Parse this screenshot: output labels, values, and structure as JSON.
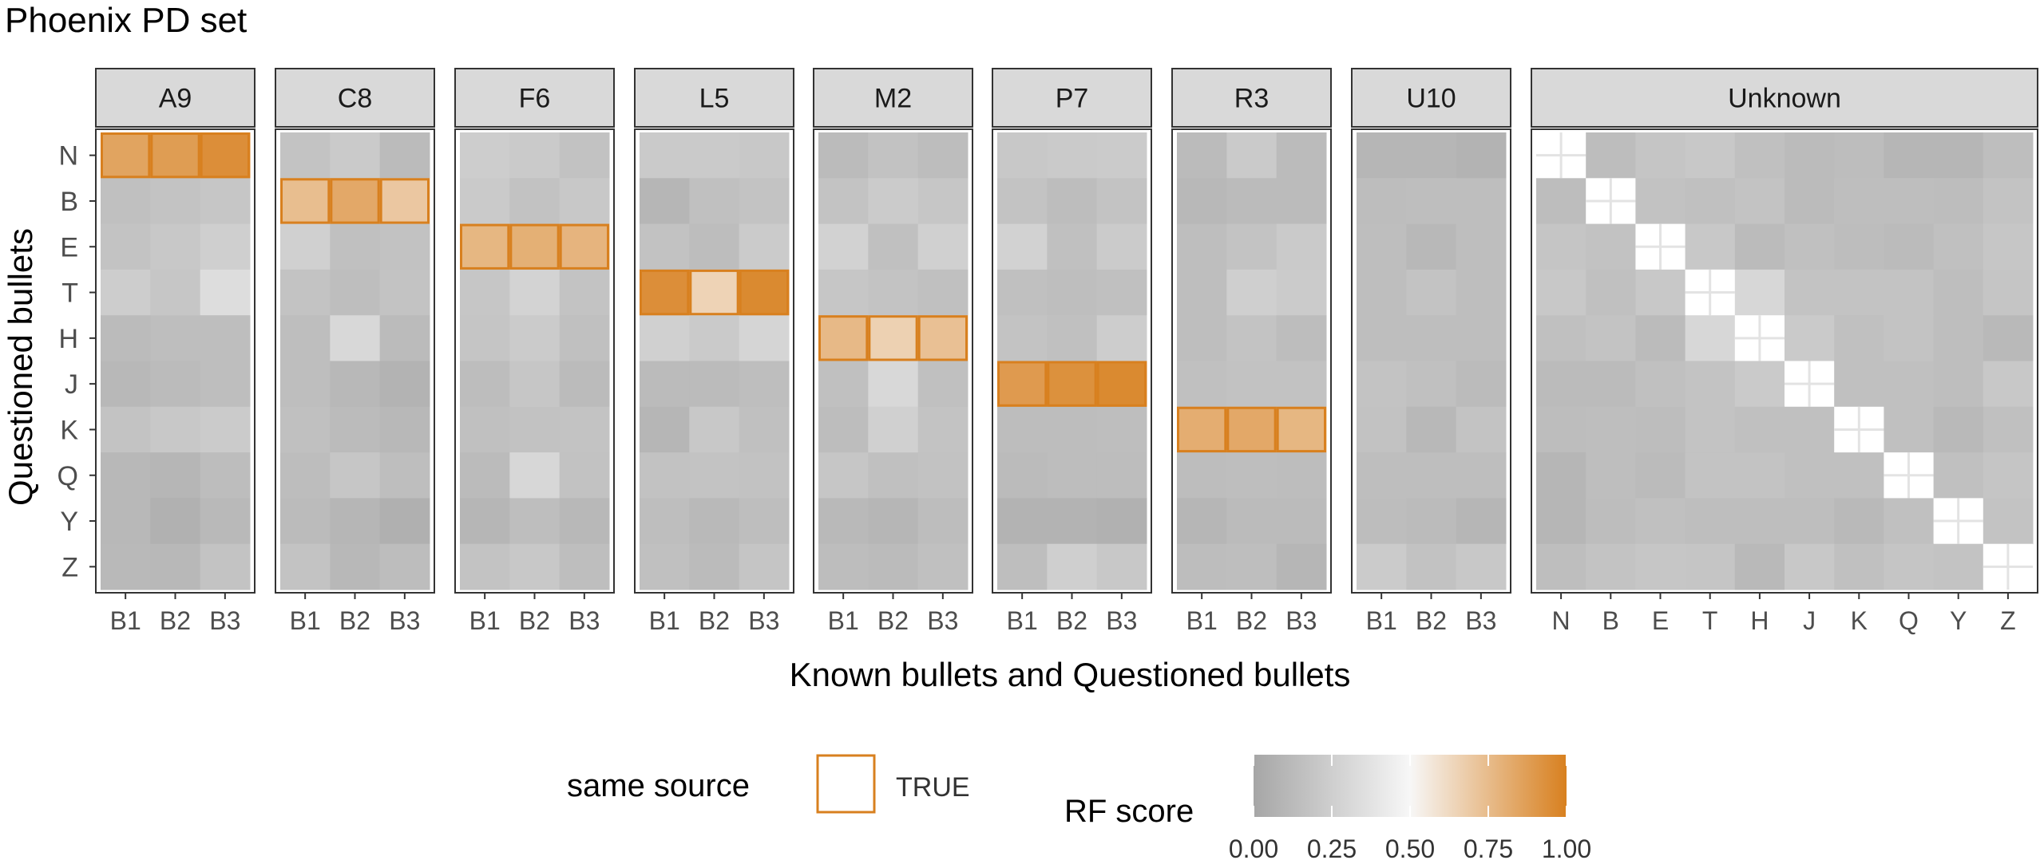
{
  "chart_data": {
    "type": "heatmap",
    "title": "Phoenix PD set",
    "xlabel": "Known bullets and Questioned bullets",
    "ylabel": "Questioned bullets",
    "rows": [
      "N",
      "B",
      "E",
      "T",
      "H",
      "J",
      "K",
      "Q",
      "Y",
      "Z"
    ],
    "known_columns": [
      "B1",
      "B2",
      "B3"
    ],
    "panels": [
      {
        "name": "A9",
        "columns": [
          "B1",
          "B2",
          "B3"
        ],
        "values": [
          [
            0.85,
            0.88,
            0.94
          ],
          [
            0.16,
            0.18,
            0.2
          ],
          [
            0.18,
            0.21,
            0.25
          ],
          [
            0.24,
            0.2,
            0.34
          ],
          [
            0.13,
            0.15,
            0.15
          ],
          [
            0.11,
            0.13,
            0.15
          ],
          [
            0.18,
            0.21,
            0.23
          ],
          [
            0.11,
            0.1,
            0.14
          ],
          [
            0.11,
            0.07,
            0.12
          ],
          [
            0.12,
            0.11,
            0.18
          ]
        ]
      },
      {
        "name": "C8",
        "columns": [
          "B1",
          "B2",
          "B3"
        ],
        "values": [
          [
            0.18,
            0.22,
            0.13
          ],
          [
            0.74,
            0.83,
            0.7
          ],
          [
            0.26,
            0.16,
            0.17
          ],
          [
            0.18,
            0.15,
            0.18
          ],
          [
            0.15,
            0.31,
            0.13
          ],
          [
            0.15,
            0.11,
            0.08
          ],
          [
            0.16,
            0.13,
            0.11
          ],
          [
            0.14,
            0.2,
            0.15
          ],
          [
            0.13,
            0.1,
            0.06
          ],
          [
            0.18,
            0.11,
            0.14
          ]
        ]
      },
      {
        "name": "F6",
        "columns": [
          "B1",
          "B2",
          "B3"
        ],
        "values": [
          [
            0.24,
            0.22,
            0.17
          ],
          [
            0.22,
            0.17,
            0.21
          ],
          [
            0.77,
            0.8,
            0.78
          ],
          [
            0.2,
            0.28,
            0.18
          ],
          [
            0.19,
            0.23,
            0.16
          ],
          [
            0.14,
            0.2,
            0.13
          ],
          [
            0.16,
            0.17,
            0.18
          ],
          [
            0.13,
            0.3,
            0.17
          ],
          [
            0.1,
            0.15,
            0.11
          ],
          [
            0.18,
            0.21,
            0.15
          ]
        ]
      },
      {
        "name": "L5",
        "columns": [
          "B1",
          "B2",
          "B3"
        ],
        "values": [
          [
            0.22,
            0.22,
            0.21
          ],
          [
            0.1,
            0.16,
            0.18
          ],
          [
            0.17,
            0.14,
            0.23
          ],
          [
            0.94,
            0.65,
            0.96
          ],
          [
            0.26,
            0.22,
            0.29
          ],
          [
            0.13,
            0.13,
            0.15
          ],
          [
            0.1,
            0.21,
            0.16
          ],
          [
            0.17,
            0.18,
            0.17
          ],
          [
            0.15,
            0.12,
            0.15
          ],
          [
            0.16,
            0.13,
            0.19
          ]
        ]
      },
      {
        "name": "M2",
        "columns": [
          "B1",
          "B2",
          "B3"
        ],
        "values": [
          [
            0.13,
            0.17,
            0.14
          ],
          [
            0.18,
            0.23,
            0.2
          ],
          [
            0.27,
            0.16,
            0.26
          ],
          [
            0.2,
            0.18,
            0.16
          ],
          [
            0.76,
            0.66,
            0.73
          ],
          [
            0.16,
            0.31,
            0.16
          ],
          [
            0.14,
            0.26,
            0.18
          ],
          [
            0.2,
            0.16,
            0.17
          ],
          [
            0.12,
            0.1,
            0.14
          ],
          [
            0.14,
            0.13,
            0.16
          ]
        ]
      },
      {
        "name": "P7",
        "columns": [
          "B1",
          "B2",
          "B3"
        ],
        "values": [
          [
            0.21,
            0.22,
            0.23
          ],
          [
            0.18,
            0.14,
            0.18
          ],
          [
            0.27,
            0.16,
            0.23
          ],
          [
            0.16,
            0.15,
            0.16
          ],
          [
            0.18,
            0.16,
            0.24
          ],
          [
            0.89,
            0.93,
            0.96
          ],
          [
            0.14,
            0.14,
            0.15
          ],
          [
            0.13,
            0.14,
            0.14
          ],
          [
            0.08,
            0.08,
            0.07
          ],
          [
            0.15,
            0.25,
            0.21
          ]
        ]
      },
      {
        "name": "R3",
        "columns": [
          "B1",
          "B2",
          "B3"
        ],
        "values": [
          [
            0.13,
            0.22,
            0.13
          ],
          [
            0.11,
            0.13,
            0.13
          ],
          [
            0.15,
            0.18,
            0.22
          ],
          [
            0.15,
            0.25,
            0.23
          ],
          [
            0.15,
            0.18,
            0.14
          ],
          [
            0.16,
            0.17,
            0.17
          ],
          [
            0.81,
            0.83,
            0.77
          ],
          [
            0.14,
            0.15,
            0.14
          ],
          [
            0.1,
            0.13,
            0.13
          ],
          [
            0.14,
            0.15,
            0.1
          ]
        ]
      },
      {
        "name": "U10",
        "columns": [
          "B1",
          "B2",
          "B3"
        ],
        "values": [
          [
            0.1,
            0.1,
            0.08
          ],
          [
            0.14,
            0.15,
            0.15
          ],
          [
            0.15,
            0.11,
            0.15
          ],
          [
            0.15,
            0.18,
            0.15
          ],
          [
            0.15,
            0.15,
            0.15
          ],
          [
            0.18,
            0.16,
            0.13
          ],
          [
            0.17,
            0.11,
            0.18
          ],
          [
            0.15,
            0.15,
            0.15
          ],
          [
            0.14,
            0.13,
            0.1
          ],
          [
            0.23,
            0.17,
            0.21
          ]
        ]
      },
      {
        "name": "Unknown",
        "columns": [
          "N",
          "B",
          "E",
          "T",
          "H",
          "J",
          "K",
          "Q",
          "Y",
          "Z"
        ],
        "values": [
          [
            null,
            0.14,
            0.19,
            0.21,
            0.16,
            0.13,
            0.14,
            0.1,
            0.1,
            0.15
          ],
          [
            0.14,
            null,
            0.17,
            0.16,
            0.18,
            0.13,
            0.15,
            0.15,
            0.14,
            0.18
          ],
          [
            0.19,
            0.17,
            null,
            0.21,
            0.13,
            0.16,
            0.14,
            0.13,
            0.16,
            0.2
          ],
          [
            0.21,
            0.16,
            0.21,
            null,
            0.3,
            0.18,
            0.18,
            0.18,
            0.15,
            0.19
          ],
          [
            0.16,
            0.18,
            0.13,
            0.3,
            null,
            0.22,
            0.16,
            0.18,
            0.15,
            0.12
          ],
          [
            0.13,
            0.13,
            0.16,
            0.18,
            0.22,
            null,
            0.16,
            0.16,
            0.15,
            0.21
          ],
          [
            0.14,
            0.15,
            0.14,
            0.18,
            0.16,
            0.16,
            null,
            0.16,
            0.12,
            0.16
          ],
          [
            0.1,
            0.15,
            0.13,
            0.18,
            0.18,
            0.16,
            0.16,
            null,
            0.16,
            0.19
          ],
          [
            0.1,
            0.14,
            0.16,
            0.15,
            0.15,
            0.15,
            0.12,
            0.16,
            null,
            0.18
          ],
          [
            0.15,
            0.18,
            0.2,
            0.19,
            0.12,
            0.21,
            0.16,
            0.19,
            0.18,
            null
          ]
        ]
      }
    ],
    "same_source_rows": {
      "A9": "N",
      "C8": "B",
      "F6": "E",
      "L5": "T",
      "M2": "H",
      "P7": "J",
      "R3": "K"
    },
    "legend": {
      "placement": "bottom",
      "same_source_title": "same source",
      "same_source_label": "TRUE",
      "colorbar_title": "RF score",
      "colorbar_ticks": [
        "0.00",
        "0.25",
        "0.50",
        "0.75",
        "1.00"
      ],
      "colorbar_range": [
        0,
        1
      ]
    },
    "colors": {
      "low": "#a6a6a6",
      "mid": "#f7f7f7",
      "high": "#d8801f",
      "outline": "#d8801f",
      "strip": "#d9d9d9",
      "diagonal": "#ffffff"
    }
  }
}
